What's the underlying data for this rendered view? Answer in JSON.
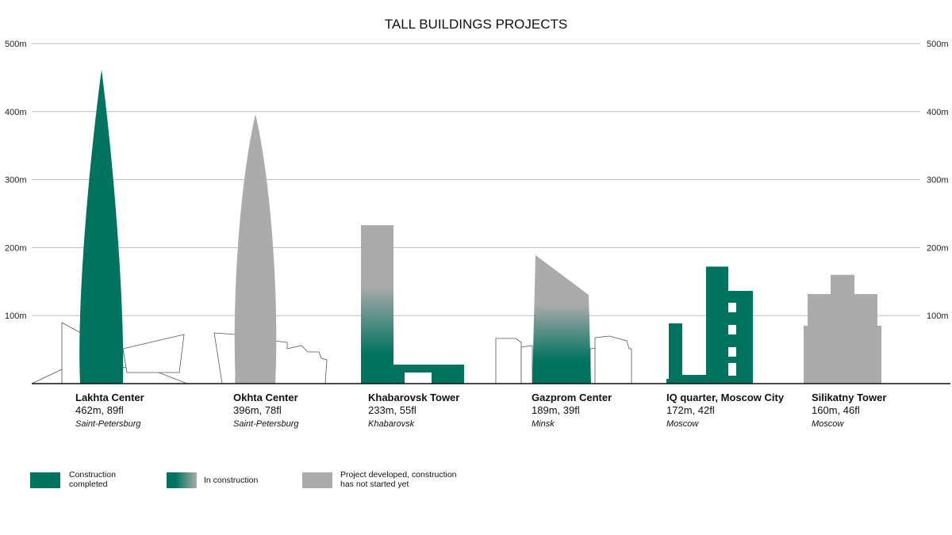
{
  "chart_data": {
    "type": "bar",
    "title": "TALL BUILDINGS PROJECTS",
    "ylim": [
      0,
      500
    ],
    "yticks": [
      100,
      200,
      300,
      400,
      500
    ],
    "ytick_unit": "m",
    "grid": true,
    "buildings": [
      {
        "name": "Lakhta Center",
        "height_m": 462,
        "floors": 89,
        "stats": "462m, 89fl",
        "city": "Saint-Petersburg",
        "status": "completed"
      },
      {
        "name": "Okhta Center",
        "height_m": 396,
        "floors": 78,
        "stats": "396m, 78fl",
        "city": "Saint-Petersburg",
        "status": "planned"
      },
      {
        "name": "Khabarovsk Tower",
        "height_m": 233,
        "floors": 55,
        "stats": "233m, 55fl",
        "city": "Khabarovsk",
        "status": "in_construction"
      },
      {
        "name": "Gazprom Center",
        "height_m": 189,
        "floors": 39,
        "stats": "189m, 39fl",
        "city": "Minsk",
        "status": "in_construction"
      },
      {
        "name": "IQ quarter, Moscow City",
        "height_m": 172,
        "floors": 42,
        "stats": "172m, 42fl",
        "city": "Moscow",
        "status": "completed"
      },
      {
        "name": "Silikatny Tower",
        "height_m": 160,
        "floors": 46,
        "stats": "160m, 46fl",
        "city": "Moscow",
        "status": "planned"
      }
    ],
    "legend": [
      {
        "key": "completed",
        "lines": [
          "Construction",
          "completed"
        ]
      },
      {
        "key": "in_construction",
        "lines": [
          "In construction"
        ]
      },
      {
        "key": "planned",
        "lines": [
          "Project developed, construction",
          "has not started yet"
        ]
      }
    ]
  },
  "colors": {
    "completed": "#00735f",
    "planned": "#ababab",
    "grid": "#bdbdbd",
    "axis": "#111111"
  }
}
